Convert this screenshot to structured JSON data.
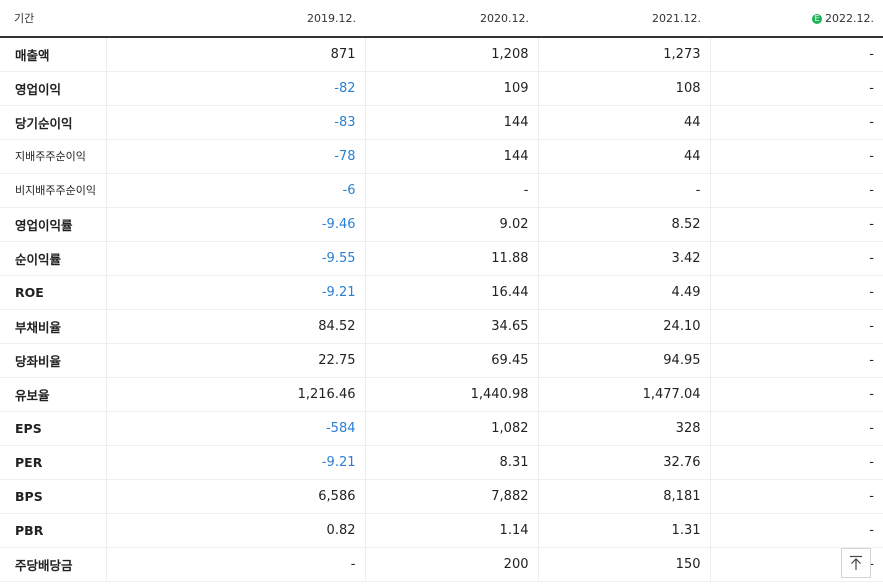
{
  "header": {
    "period_label": "기간",
    "columns": [
      "2019.12.",
      "2020.12.",
      "2021.12.",
      "2022.12."
    ],
    "estimate_badge": "E"
  },
  "rows": [
    {
      "label": "매출액",
      "values": [
        "871",
        "1,208",
        "1,273",
        "-"
      ]
    },
    {
      "label": "영업이익",
      "values": [
        "-82",
        "109",
        "108",
        "-"
      ]
    },
    {
      "label": "당기순이익",
      "values": [
        "-83",
        "144",
        "44",
        "-"
      ]
    },
    {
      "label": "지배주주순이익",
      "values": [
        "-78",
        "144",
        "44",
        "-"
      ]
    },
    {
      "label": "비지배주주순이익",
      "values": [
        "-6",
        "-",
        "-",
        "-"
      ]
    },
    {
      "label": "영업이익률",
      "values": [
        "-9.46",
        "9.02",
        "8.52",
        "-"
      ]
    },
    {
      "label": "순이익률",
      "values": [
        "-9.55",
        "11.88",
        "3.42",
        "-"
      ]
    },
    {
      "label": "ROE",
      "values": [
        "-9.21",
        "16.44",
        "4.49",
        "-"
      ]
    },
    {
      "label": "부채비율",
      "values": [
        "84.52",
        "34.65",
        "24.10",
        "-"
      ]
    },
    {
      "label": "당좌비율",
      "values": [
        "22.75",
        "69.45",
        "94.95",
        "-"
      ]
    },
    {
      "label": "유보율",
      "values": [
        "1,216.46",
        "1,440.98",
        "1,477.04",
        "-"
      ]
    },
    {
      "label": "EPS",
      "values": [
        "-584",
        "1,082",
        "328",
        "-"
      ]
    },
    {
      "label": "PER",
      "values": [
        "-9.21",
        "8.31",
        "32.76",
        "-"
      ]
    },
    {
      "label": "BPS",
      "values": [
        "6,586",
        "7,882",
        "8,181",
        "-"
      ]
    },
    {
      "label": "PBR",
      "values": [
        "0.82",
        "1.14",
        "1.31",
        "-"
      ]
    },
    {
      "label": "주당배당금",
      "values": [
        "-",
        "200",
        "150",
        "-"
      ]
    }
  ],
  "colors": {
    "negative": "#2a7fd4",
    "estimate": "#1cb455"
  },
  "icons": {
    "estimate": "estimate-badge-icon",
    "scroll_top": "arrow-up-icon"
  }
}
